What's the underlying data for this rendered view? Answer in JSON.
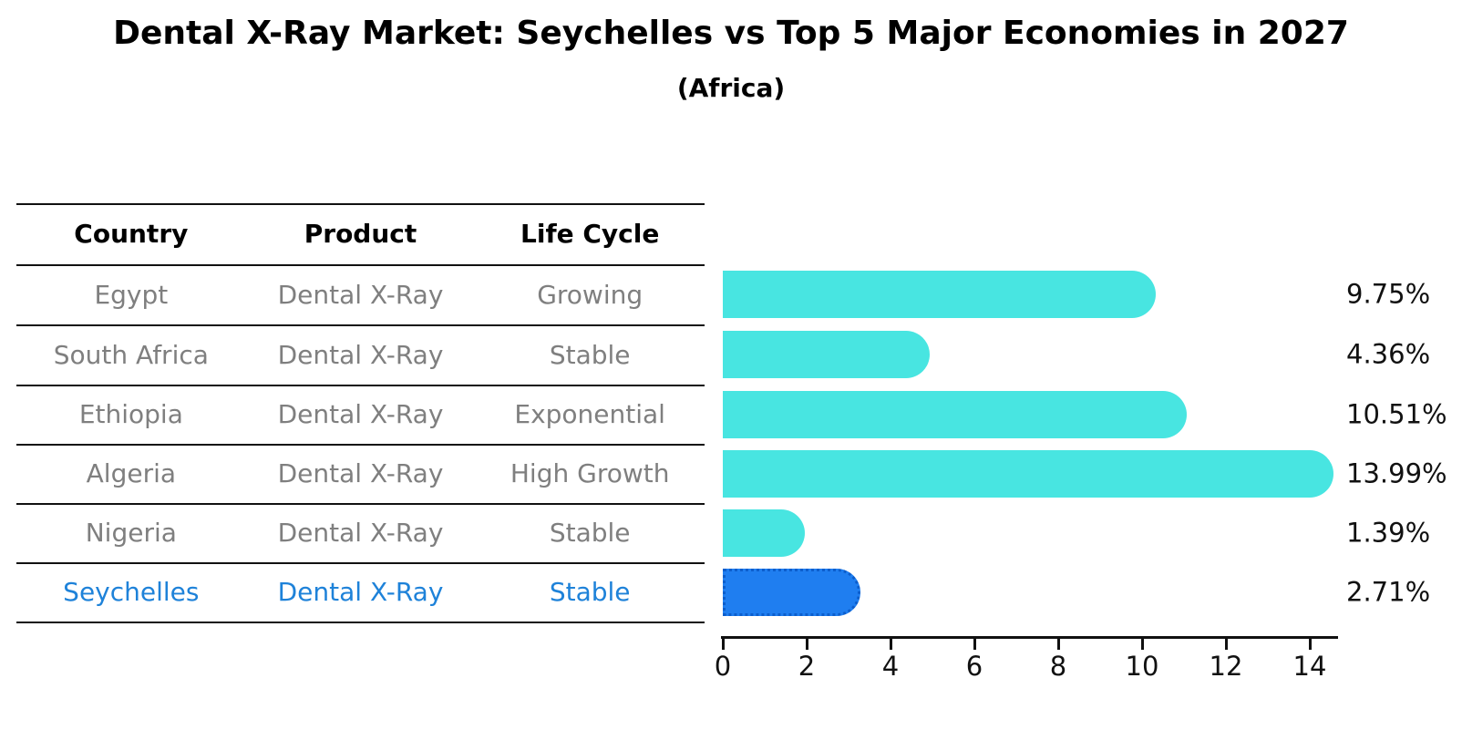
{
  "title": "Dental X-Ray Market: Seychelles vs Top 5 Major Economies in 2027",
  "subtitle": "(Africa)",
  "table": {
    "headers": [
      "Country",
      "Product",
      "Life Cycle"
    ],
    "rows": [
      {
        "country": "Egypt",
        "product": "Dental X-Ray",
        "life_cycle": "Growing",
        "highlighted": false
      },
      {
        "country": "South Africa",
        "product": "Dental X-Ray",
        "life_cycle": "Stable",
        "highlighted": false
      },
      {
        "country": "Ethiopia",
        "product": "Dental X-Ray",
        "life_cycle": "Exponential",
        "highlighted": false
      },
      {
        "country": "Algeria",
        "product": "Dental X-Ray",
        "life_cycle": "High Growth",
        "highlighted": false
      },
      {
        "country": "Nigeria",
        "product": "Dental X-Ray",
        "life_cycle": "Stable",
        "highlighted": false
      },
      {
        "country": "Seychelles",
        "product": "Dental X-Ray",
        "life_cycle": "Stable",
        "highlighted": true
      }
    ]
  },
  "chart_data": {
    "type": "bar",
    "orientation": "horizontal",
    "categories": [
      "Egypt",
      "South Africa",
      "Ethiopia",
      "Algeria",
      "Nigeria",
      "Seychelles"
    ],
    "values": [
      9.75,
      4.36,
      10.51,
      13.99,
      1.39,
      2.71
    ],
    "value_labels": [
      "9.75%",
      "4.36%",
      "10.51%",
      "13.99%",
      "1.39%",
      "2.71%"
    ],
    "unit": "%",
    "x_ticks": [
      0,
      2,
      4,
      6,
      8,
      10,
      12,
      14
    ],
    "xlim": [
      0,
      14.7
    ],
    "grid": false,
    "legend": false,
    "highlighted_category": "Seychelles"
  },
  "colors": {
    "bar_default": "#48E5E1",
    "bar_highlight": "#1F7EF0",
    "bar_highlight_border": "#0C5ECC",
    "table_text": "#7F7F7F",
    "highlight_text": "#1E82D9",
    "heading_text": "#000000",
    "axis": "#111111"
  }
}
